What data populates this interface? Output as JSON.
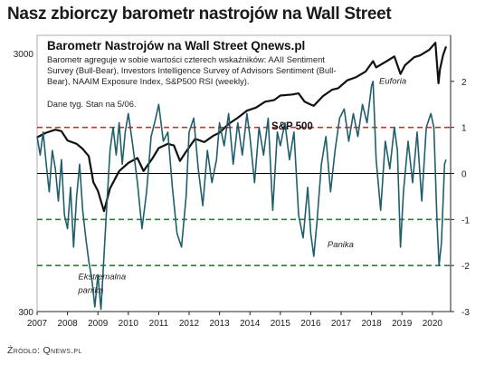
{
  "headline": "Nasz zbiorczy barometr nastrojów na Wall Street",
  "source": "Źródło: Qnews.pl",
  "chart_data": {
    "type": "line",
    "title": "Barometr Nastrojów na Wall Street Qnews.pl",
    "description": [
      "Barometr agreguje w sobie wartości czterech wskaźników: AAII Sentiment",
      "Survey (Bull-Bear), Investors Intelligence Survey of Advisors Sentiment (Bull-",
      "Bear), NAAIM Exposure Index, S&P500 RSI (weekly)."
    ],
    "note": "Dane tyg. Stan na 5/06.",
    "sp500_label": "S&P 500",
    "x_ticks": [
      "2007",
      "2008",
      "2009",
      "2010",
      "2011",
      "2012",
      "2013",
      "2014",
      "2015",
      "2016",
      "2017",
      "2018",
      "2019",
      "2020"
    ],
    "xlim": [
      2007.0,
      2020.6
    ],
    "left_axis": {
      "scale": "log",
      "ylim": [
        300,
        3000
      ],
      "tick_labels": [
        "3000",
        "300"
      ]
    },
    "right_axis": {
      "ylim": [
        -3,
        3
      ],
      "tick_labels": [
        "2",
        "1",
        "0",
        "-1",
        "-2",
        "-3"
      ]
    },
    "reference_lines": [
      {
        "y": 1,
        "color": "#d32f2f",
        "style": "dashed"
      },
      {
        "y": 0,
        "color": "#000000",
        "style": "solid"
      },
      {
        "y": -1,
        "color": "#2e7d32",
        "style": "dashed"
      },
      {
        "y": -2,
        "color": "#2e7d32",
        "style": "dashed"
      }
    ],
    "annotations": [
      {
        "text": "Euforia",
        "x": 2018.25,
        "y": 1.95
      },
      {
        "text": "Panika",
        "x": 2016.55,
        "y": -1.6
      },
      {
        "text": "Ekstremalna",
        "x": 2008.35,
        "y": -2.3
      },
      {
        "text": "panika",
        "x": 2008.35,
        "y": -2.6
      }
    ],
    "series": [
      {
        "name": "S&P 500",
        "color": "#111111",
        "axis": "left",
        "x": [
          2007.0,
          2007.3,
          2007.6,
          2007.8,
          2008.0,
          2008.3,
          2008.5,
          2008.7,
          2008.85,
          2009.0,
          2009.2,
          2009.4,
          2009.7,
          2010.0,
          2010.3,
          2010.5,
          2010.8,
          2011.0,
          2011.3,
          2011.5,
          2011.7,
          2011.9,
          2012.2,
          2012.5,
          2012.8,
          2013.0,
          2013.3,
          2013.6,
          2013.9,
          2014.2,
          2014.5,
          2014.8,
          2015.0,
          2015.4,
          2015.6,
          2015.8,
          2016.0,
          2016.1,
          2016.4,
          2016.7,
          2016.9,
          2017.2,
          2017.5,
          2017.8,
          2018.05,
          2018.15,
          2018.5,
          2018.75,
          2018.95,
          2019.1,
          2019.4,
          2019.6,
          2019.9,
          2020.1,
          2020.2,
          2020.25,
          2020.35,
          2020.45
        ],
        "values": [
          1420,
          1480,
          1520,
          1500,
          1380,
          1340,
          1280,
          1200,
          950,
          880,
          735,
          900,
          1050,
          1130,
          1180,
          1050,
          1180,
          1290,
          1340,
          1320,
          1150,
          1250,
          1400,
          1360,
          1440,
          1480,
          1600,
          1690,
          1800,
          1850,
          1950,
          1980,
          2060,
          2080,
          2100,
          1950,
          1900,
          1880,
          2050,
          2170,
          2200,
          2360,
          2430,
          2550,
          2800,
          2650,
          2800,
          2920,
          2500,
          2700,
          2900,
          2950,
          3100,
          3300,
          2300,
          2600,
          2950,
          3190
        ]
      },
      {
        "name": "Barometr",
        "color": "#1f5f6b",
        "axis": "right",
        "x": [
          2007.0,
          2007.1,
          2007.2,
          2007.3,
          2007.4,
          2007.5,
          2007.6,
          2007.7,
          2007.8,
          2007.9,
          2008.0,
          2008.1,
          2008.2,
          2008.3,
          2008.4,
          2008.5,
          2008.6,
          2008.7,
          2008.8,
          2008.9,
          2009.0,
          2009.1,
          2009.2,
          2009.3,
          2009.4,
          2009.5,
          2009.6,
          2009.7,
          2009.8,
          2009.9,
          2010.0,
          2010.15,
          2010.3,
          2010.45,
          2010.6,
          2010.75,
          2010.9,
          2011.0,
          2011.15,
          2011.3,
          2011.45,
          2011.6,
          2011.75,
          2011.9,
          2012.0,
          2012.15,
          2012.3,
          2012.45,
          2012.6,
          2012.75,
          2012.9,
          2013.0,
          2013.15,
          2013.3,
          2013.45,
          2013.6,
          2013.75,
          2013.9,
          2014.0,
          2014.15,
          2014.3,
          2014.45,
          2014.6,
          2014.75,
          2014.9,
          2015.0,
          2015.15,
          2015.3,
          2015.45,
          2015.6,
          2015.75,
          2015.9,
          2016.0,
          2016.1,
          2016.2,
          2016.35,
          2016.5,
          2016.65,
          2016.8,
          2016.95,
          2017.1,
          2017.25,
          2017.4,
          2017.55,
          2017.7,
          2017.85,
          2018.0,
          2018.05,
          2018.15,
          2018.3,
          2018.45,
          2018.6,
          2018.75,
          2018.85,
          2018.95,
          2019.05,
          2019.2,
          2019.35,
          2019.5,
          2019.65,
          2019.8,
          2019.95,
          2020.05,
          2020.15,
          2020.22,
          2020.3,
          2020.4,
          2020.45
        ],
        "values": [
          0.8,
          0.4,
          0.9,
          0.2,
          -0.4,
          0.5,
          0.1,
          -0.6,
          0.3,
          -0.9,
          -1.2,
          -0.3,
          -1.6,
          -0.5,
          0.2,
          -0.8,
          -1.4,
          -1.9,
          -2.3,
          -2.9,
          -2.2,
          -2.95,
          -1.8,
          -0.6,
          0.5,
          1.0,
          0.4,
          1.1,
          0.2,
          0.9,
          1.3,
          0.6,
          -0.2,
          -1.2,
          -0.4,
          0.8,
          1.2,
          1.5,
          0.7,
          0.9,
          -0.3,
          -1.3,
          -1.6,
          -0.5,
          0.9,
          1.2,
          0.1,
          -0.7,
          0.5,
          -0.2,
          0.3,
          1.1,
          0.6,
          1.3,
          0.2,
          1.1,
          0.4,
          1.3,
          0.8,
          -0.2,
          1.0,
          0.4,
          1.2,
          -0.8,
          0.9,
          0.6,
          1.1,
          0.3,
          0.9,
          -0.9,
          -1.4,
          -0.3,
          -1.3,
          -1.8,
          -1.1,
          0.2,
          0.8,
          -0.4,
          0.5,
          1.2,
          1.4,
          0.7,
          1.3,
          0.8,
          1.5,
          1.1,
          1.9,
          2.0,
          0.3,
          -0.8,
          0.7,
          0.1,
          1.0,
          0.5,
          -1.6,
          -0.4,
          0.7,
          -0.2,
          0.9,
          -0.6,
          1.0,
          1.3,
          1.0,
          -1.0,
          -2.0,
          -1.5,
          0.2,
          0.3
        ]
      }
    ]
  }
}
